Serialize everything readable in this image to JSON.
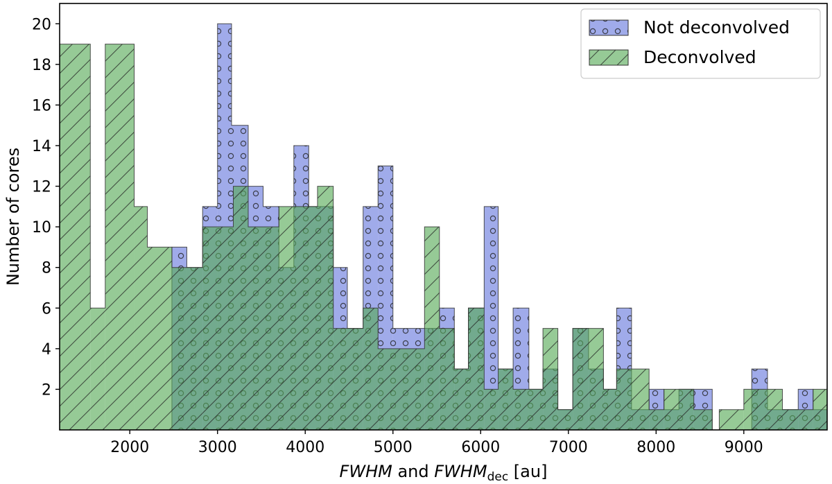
{
  "chart_data": {
    "type": "bar",
    "subtype": "step-histogram",
    "title": "",
    "xlabel_parts": [
      {
        "text": "FWHM",
        "style": "italic"
      },
      {
        "text": " and ",
        "style": "normal"
      },
      {
        "text": "FWHM",
        "style": "italic"
      },
      {
        "text": "dec",
        "style": "subscript"
      },
      {
        "text": " [au]",
        "style": "normal"
      }
    ],
    "ylabel": "Number of cores",
    "xlim": [
      1200,
      9950
    ],
    "ylim": [
      0,
      21
    ],
    "x_ticks": [
      2000,
      3000,
      4000,
      5000,
      6000,
      7000,
      8000,
      9000
    ],
    "y_ticks": [
      2,
      4,
      6,
      8,
      10,
      12,
      14,
      16,
      18,
      20
    ],
    "grid": false,
    "legend_position": "top-right",
    "series": [
      {
        "name": "Not deconvolved",
        "color": "#6677dd",
        "hatch": "circles",
        "bins": [
          [
            2480,
            2650,
            9
          ],
          [
            2650,
            2830,
            8
          ],
          [
            2830,
            3000,
            11
          ],
          [
            3000,
            3160,
            20
          ],
          [
            3160,
            3350,
            15
          ],
          [
            3350,
            3520,
            12
          ],
          [
            3520,
            3700,
            11
          ],
          [
            3700,
            3870,
            8
          ],
          [
            3870,
            4040,
            14
          ],
          [
            4040,
            4320,
            11
          ],
          [
            4320,
            4480,
            8
          ],
          [
            4480,
            4660,
            5
          ],
          [
            4660,
            4830,
            11
          ],
          [
            4830,
            5000,
            13
          ],
          [
            5000,
            5360,
            5
          ],
          [
            5360,
            5530,
            5
          ],
          [
            5530,
            5700,
            6
          ],
          [
            5700,
            5860,
            3
          ],
          [
            5860,
            6040,
            6
          ],
          [
            6040,
            6200,
            11
          ],
          [
            6200,
            6370,
            3
          ],
          [
            6370,
            6550,
            6
          ],
          [
            6550,
            6710,
            2
          ],
          [
            6710,
            6880,
            3
          ],
          [
            6880,
            7050,
            1
          ],
          [
            7050,
            7230,
            5
          ],
          [
            7230,
            7400,
            3
          ],
          [
            7400,
            7550,
            2
          ],
          [
            7550,
            7720,
            6
          ],
          [
            7720,
            7920,
            1
          ],
          [
            7920,
            8090,
            2
          ],
          [
            8090,
            8260,
            1
          ],
          [
            8260,
            8430,
            2
          ],
          [
            8430,
            8640,
            2
          ],
          [
            9090,
            9270,
            3
          ],
          [
            9270,
            9620,
            1
          ],
          [
            9620,
            9790,
            2
          ],
          [
            9790,
            9950,
            1
          ]
        ]
      },
      {
        "name": "Deconvolved",
        "color": "#55aa55",
        "hatch": "diagonal",
        "bins": [
          [
            1200,
            1370,
            19
          ],
          [
            1370,
            1550,
            19
          ],
          [
            1550,
            1720,
            6
          ],
          [
            1720,
            2050,
            19
          ],
          [
            2050,
            2200,
            11
          ],
          [
            2200,
            2480,
            9
          ],
          [
            2480,
            2830,
            8
          ],
          [
            2830,
            3180,
            10
          ],
          [
            3180,
            3350,
            12
          ],
          [
            3350,
            3700,
            10
          ],
          [
            3700,
            4140,
            11
          ],
          [
            4140,
            4320,
            12
          ],
          [
            4320,
            4660,
            5
          ],
          [
            4660,
            4830,
            6
          ],
          [
            4830,
            5180,
            4
          ],
          [
            5180,
            5360,
            4
          ],
          [
            5360,
            5530,
            10
          ],
          [
            5530,
            5700,
            5
          ],
          [
            5700,
            5860,
            3
          ],
          [
            5860,
            6040,
            6
          ],
          [
            6040,
            6200,
            2
          ],
          [
            6200,
            6370,
            3
          ],
          [
            6370,
            6710,
            2
          ],
          [
            6710,
            6880,
            5
          ],
          [
            6880,
            7050,
            1
          ],
          [
            7050,
            7230,
            5
          ],
          [
            7230,
            7400,
            5
          ],
          [
            7400,
            7550,
            2
          ],
          [
            7550,
            7720,
            3
          ],
          [
            7720,
            7920,
            3
          ],
          [
            7920,
            8090,
            1
          ],
          [
            8090,
            8260,
            2
          ],
          [
            8260,
            8430,
            2
          ],
          [
            8430,
            8640,
            1
          ],
          [
            8640,
            8720,
            0
          ],
          [
            8720,
            9000,
            1
          ],
          [
            9000,
            9270,
            2
          ],
          [
            9270,
            9440,
            2
          ],
          [
            9440,
            9620,
            1
          ],
          [
            9620,
            9790,
            1
          ],
          [
            9790,
            9950,
            2
          ]
        ]
      }
    ]
  }
}
